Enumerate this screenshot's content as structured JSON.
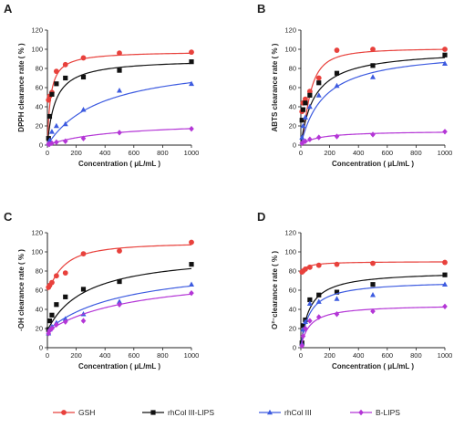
{
  "figure": {
    "panels": [
      "A",
      "B",
      "C",
      "D"
    ]
  },
  "chart_data": [
    {
      "panel": "A",
      "type": "scatter",
      "xlabel": "Concentration ( μL/mL )",
      "ylabel": "DPPH clearance rate ( % )",
      "xlim": [
        0,
        1000
      ],
      "ylim": [
        0,
        120
      ],
      "xticks": [
        0,
        200,
        400,
        600,
        800,
        1000
      ],
      "yticks": [
        0,
        20,
        40,
        60,
        80,
        100,
        120
      ],
      "grid": false,
      "series": [
        {
          "name": "GSH",
          "color": "#e8413c",
          "marker": "circle",
          "x": [
            7.8,
            15.6,
            31.25,
            62.5,
            125,
            250,
            500,
            1000
          ],
          "y": [
            47,
            51,
            55,
            77,
            84,
            91,
            96,
            97
          ],
          "fit": {
            "top": 98,
            "ec50": 22,
            "hill": 1
          }
        },
        {
          "name": "rhCol III-LIPS",
          "color": "#111111",
          "marker": "square",
          "x": [
            7.8,
            15.6,
            31.25,
            62.5,
            125,
            250,
            500,
            1000
          ],
          "y": [
            7,
            30,
            53,
            64,
            70,
            71,
            78,
            87
          ],
          "fit": {
            "top": 90,
            "ec50": 55,
            "hill": 1
          }
        },
        {
          "name": "rhCol III",
          "color": "#3d5be0",
          "marker": "triangle",
          "x": [
            7.8,
            15.6,
            31.25,
            62.5,
            125,
            250,
            500,
            1000
          ],
          "y": [
            2,
            5,
            14,
            20,
            22,
            37,
            57,
            64
          ],
          "fit": {
            "top": 90,
            "ec50": 380,
            "hill": 1
          }
        },
        {
          "name": "B-LIPS",
          "color": "#b436d6",
          "marker": "diamond",
          "x": [
            7.8,
            15.6,
            31.25,
            62.5,
            125,
            250,
            500,
            1000
          ],
          "y": [
            1,
            1,
            2,
            3,
            4,
            7,
            13,
            17
          ],
          "fit": {
            "top": 25,
            "ec50": 450,
            "hill": 1
          }
        }
      ]
    },
    {
      "panel": "B",
      "type": "scatter",
      "xlabel": "Concentration ( μL/mL )",
      "ylabel": "ABTS clearance rate ( % )",
      "xlim": [
        0,
        1000
      ],
      "ylim": [
        0,
        120
      ],
      "xticks": [
        0,
        200,
        400,
        600,
        800,
        1000
      ],
      "yticks": [
        0,
        20,
        40,
        60,
        80,
        100,
        120
      ],
      "grid": false,
      "series": [
        {
          "name": "GSH",
          "color": "#e8413c",
          "marker": "circle",
          "x": [
            7.8,
            15.6,
            31.25,
            62.5,
            125,
            250,
            500,
            1000
          ],
          "y": [
            35,
            44,
            48,
            56,
            70,
            99,
            100,
            100
          ],
          "fit": {
            "top": 101,
            "ec50": 60,
            "hill": 1.6
          }
        },
        {
          "name": "rhCol III-LIPS",
          "color": "#111111",
          "marker": "square",
          "x": [
            7.8,
            15.6,
            31.25,
            62.5,
            125,
            250,
            500,
            1000
          ],
          "y": [
            26,
            37,
            44,
            52,
            65,
            75,
            83,
            94
          ],
          "fit": {
            "top": 100,
            "ec50": 95,
            "hill": 1
          }
        },
        {
          "name": "rhCol III",
          "color": "#3d5be0",
          "marker": "triangle",
          "x": [
            7.8,
            15.6,
            31.25,
            62.5,
            125,
            250,
            500,
            1000
          ],
          "y": [
            8,
            20,
            29,
            40,
            52,
            62,
            71,
            85
          ],
          "fit": {
            "top": 100,
            "ec50": 160,
            "hill": 1
          }
        },
        {
          "name": "B-LIPS",
          "color": "#b436d6",
          "marker": "diamond",
          "x": [
            7.8,
            15.6,
            31.25,
            62.5,
            125,
            250,
            500,
            1000
          ],
          "y": [
            2,
            3,
            4,
            6,
            8,
            9,
            11,
            14
          ],
          "fit": {
            "top": 15,
            "ec50": 120,
            "hill": 1
          }
        }
      ]
    },
    {
      "panel": "C",
      "type": "scatter",
      "xlabel": "Concentration ( μL/mL )",
      "ylabel": "·OH clearance rate ( % )",
      "xlim": [
        0,
        1000
      ],
      "ylim": [
        0,
        120
      ],
      "xticks": [
        0,
        200,
        400,
        600,
        800,
        1000
      ],
      "yticks": [
        0,
        20,
        40,
        60,
        80,
        100,
        120
      ],
      "grid": false,
      "series": [
        {
          "name": "GSH",
          "color": "#e8413c",
          "marker": "circle",
          "x": [
            7.8,
            15.6,
            31.25,
            62.5,
            125,
            250,
            500,
            1000
          ],
          "y": [
            63,
            65,
            68,
            75,
            78,
            98,
            101,
            110
          ],
          "fit": {
            "bottom": 60,
            "top": 110,
            "ec50": 110,
            "hill": 1.3
          }
        },
        {
          "name": "rhCol III-LIPS",
          "color": "#111111",
          "marker": "square",
          "x": [
            7.8,
            15.6,
            31.25,
            62.5,
            125,
            250,
            500,
            1000
          ],
          "y": [
            19,
            28,
            34,
            45,
            53,
            61,
            69,
            87
          ],
          "fit": {
            "bottom": 18,
            "top": 100,
            "ec50": 270,
            "hill": 1
          }
        },
        {
          "name": "rhCol III",
          "color": "#3d5be0",
          "marker": "triangle",
          "x": [
            7.8,
            15.6,
            31.25,
            62.5,
            125,
            250,
            500,
            1000
          ],
          "y": [
            15,
            19,
            22,
            26,
            30,
            35,
            48,
            66
          ],
          "fit": {
            "bottom": 18,
            "top": 90,
            "ec50": 550,
            "hill": 1
          }
        },
        {
          "name": "B-LIPS",
          "color": "#b436d6",
          "marker": "diamond",
          "x": [
            7.8,
            15.6,
            31.25,
            62.5,
            125,
            250,
            500,
            1000
          ],
          "y": [
            15,
            18,
            20,
            24,
            27,
            28,
            45,
            57
          ],
          "fit": {
            "bottom": 17,
            "top": 80,
            "ec50": 620,
            "hill": 1
          }
        }
      ]
    },
    {
      "panel": "D",
      "type": "scatter",
      "xlabel": "Concentration ( μL/mL )",
      "ylabel": "O²⁻clearance rate ( % )",
      "xlim": [
        0,
        1000
      ],
      "ylim": [
        0,
        120
      ],
      "xticks": [
        0,
        200,
        400,
        600,
        800,
        1000
      ],
      "yticks": [
        0,
        20,
        40,
        60,
        80,
        100,
        120
      ],
      "grid": false,
      "series": [
        {
          "name": "GSH",
          "color": "#e8413c",
          "marker": "circle",
          "x": [
            7.8,
            15.6,
            31.25,
            62.5,
            125,
            250,
            500,
            1000
          ],
          "y": [
            79,
            80,
            82,
            84,
            86,
            87,
            88,
            89
          ],
          "fit": {
            "bottom": 78,
            "top": 90,
            "ec50": 40,
            "hill": 1
          }
        },
        {
          "name": "rhCol III-LIPS",
          "color": "#111111",
          "marker": "square",
          "x": [
            7.8,
            15.6,
            31.25,
            62.5,
            125,
            250,
            500,
            1000
          ],
          "y": [
            5,
            23,
            29,
            50,
            55,
            58,
            66,
            76
          ],
          "fit": {
            "top": 80,
            "ec50": 60,
            "hill": 1
          }
        },
        {
          "name": "rhCol III",
          "color": "#3d5be0",
          "marker": "triangle",
          "x": [
            7.8,
            15.6,
            31.25,
            62.5,
            125,
            250,
            500,
            1000
          ],
          "y": [
            4,
            19,
            27,
            46,
            48,
            51,
            55,
            66
          ],
          "fit": {
            "top": 70,
            "ec50": 60,
            "hill": 1
          }
        },
        {
          "name": "B-LIPS",
          "color": "#b436d6",
          "marker": "diamond",
          "x": [
            7.8,
            15.6,
            31.25,
            62.5,
            125,
            250,
            500,
            1000
          ],
          "y": [
            2,
            12,
            20,
            28,
            32,
            35,
            38,
            43
          ],
          "fit": {
            "top": 45,
            "ec50": 60,
            "hill": 1
          }
        }
      ]
    }
  ],
  "legend": {
    "placement": "bottom",
    "items": [
      {
        "label": "GSH",
        "color": "#e8413c",
        "marker": "circle"
      },
      {
        "label": "rhCol III-LIPS",
        "color": "#111111",
        "marker": "square"
      },
      {
        "label": "rhCol III",
        "color": "#3d5be0",
        "marker": "triangle"
      },
      {
        "label": "B-LIPS",
        "color": "#b436d6",
        "marker": "diamond"
      }
    ]
  }
}
